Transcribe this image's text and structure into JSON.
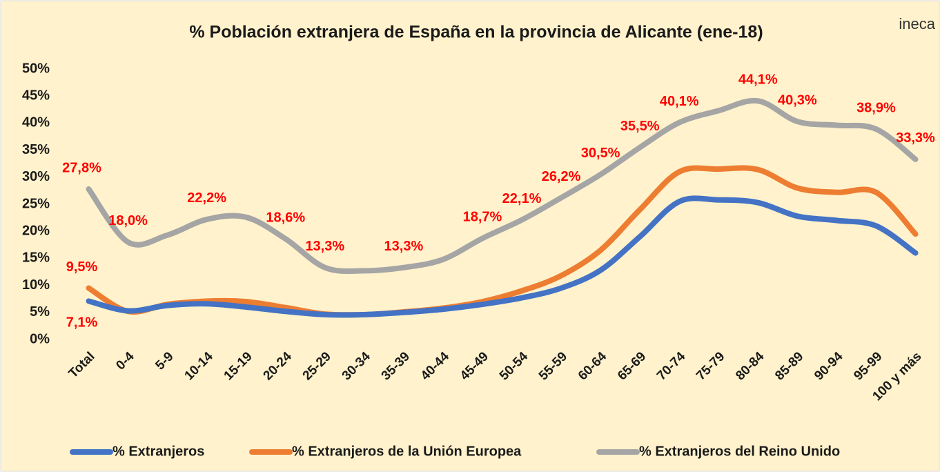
{
  "logo": "ineca",
  "chart_data": {
    "type": "line",
    "title": "% Población extranjera de España en la provincia de Alicante (ene-18)",
    "categories": [
      "Total",
      "0-4",
      "5-9",
      "10-14",
      "15-19",
      "20-24",
      "25-29",
      "30-34",
      "35-39",
      "40-44",
      "45-49",
      "50-54",
      "55-59",
      "60-64",
      "65-69",
      "70-74",
      "75-79",
      "80-84",
      "85-89",
      "90-94",
      "95-99",
      "100 y más"
    ],
    "series": [
      {
        "name": "% Extranjeros",
        "color": "#4472c4",
        "values": [
          7.1,
          5.3,
          6.3,
          6.6,
          6.0,
          5.2,
          4.6,
          4.6,
          5.0,
          5.6,
          6.5,
          7.7,
          9.5,
          12.8,
          19.0,
          25.5,
          25.8,
          25.3,
          22.8,
          22.0,
          21.0,
          16.0
        ],
        "value_labels": [
          "7,1%",
          null,
          null,
          null,
          null,
          null,
          null,
          null,
          null,
          null,
          null,
          null,
          null,
          null,
          null,
          null,
          null,
          null,
          null,
          null,
          null,
          null
        ]
      },
      {
        "name": "% Extranjeros de la Unión Europea",
        "color": "#ed7d31",
        "values": [
          9.5,
          5.2,
          6.5,
          7.1,
          7.0,
          5.9,
          4.7,
          4.6,
          5.1,
          5.8,
          7.0,
          9.0,
          11.8,
          16.5,
          24.0,
          31.0,
          31.5,
          31.4,
          28.0,
          27.2,
          27.2,
          19.5
        ],
        "value_labels": [
          "9,5%",
          null,
          null,
          null,
          null,
          null,
          null,
          null,
          null,
          null,
          null,
          null,
          null,
          null,
          null,
          null,
          null,
          null,
          null,
          null,
          null,
          null
        ]
      },
      {
        "name": "% Extranjeros del Reino Unido",
        "color": "#a5a5a5",
        "values": [
          27.8,
          18.0,
          19.3,
          22.2,
          22.6,
          18.6,
          13.3,
          12.7,
          13.3,
          14.8,
          18.7,
          22.1,
          26.2,
          30.5,
          35.5,
          40.1,
          42.3,
          44.1,
          40.3,
          39.6,
          38.9,
          33.3
        ],
        "value_labels": [
          "27,8%",
          "18,0%",
          null,
          "22,2%",
          null,
          "18,6%",
          "13,3%",
          null,
          "13,3%",
          null,
          "18,7%",
          "22,1%",
          "26,2%",
          "30,5%",
          "35,5%",
          "40,1%",
          null,
          "44,1%",
          "40,3%",
          null,
          "38,9%",
          "33,3%"
        ]
      }
    ],
    "ylim": [
      0,
      50
    ],
    "yticks": [
      {
        "value": 0,
        "label": "0%"
      },
      {
        "value": 5,
        "label": "5%"
      },
      {
        "value": 10,
        "label": "10%"
      },
      {
        "value": 15,
        "label": "15%"
      },
      {
        "value": 20,
        "label": "20%"
      },
      {
        "value": 25,
        "label": "25%"
      },
      {
        "value": 30,
        "label": "30%"
      },
      {
        "value": 35,
        "label": "35%"
      },
      {
        "value": 40,
        "label": "40%"
      },
      {
        "value": 45,
        "label": "45%"
      },
      {
        "value": 50,
        "label": "50%"
      }
    ],
    "grid": false,
    "legend": "bottom"
  }
}
